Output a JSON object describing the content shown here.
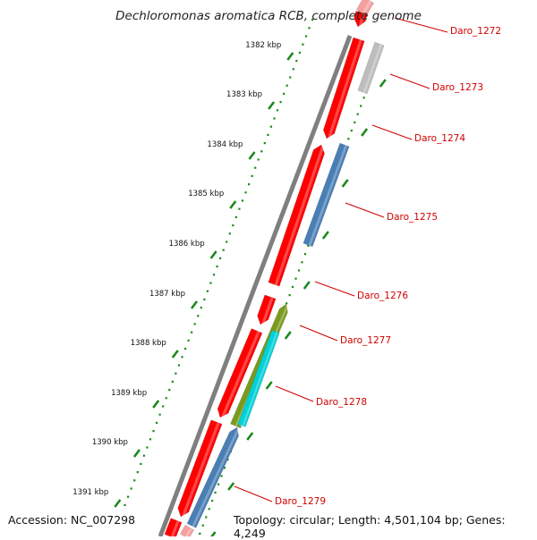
{
  "title": "Dechloromonas aromatica RCB, complete genome",
  "footer": {
    "accession": "Accession: NC_007298",
    "topology": "Topology: circular; Length: 4,501,104 bp; Genes: 4,249"
  },
  "colors": {
    "forward_gene": "#ff0000",
    "reverse_blue": "#4a7fb5",
    "reverse_gray": "#bdbdbd",
    "olive": "#7a9a1e",
    "cyan": "#00d0d8",
    "pink": "#f4a0a0",
    "backbone": "#808080",
    "tick": "#1a8a1a",
    "label": "#d00000"
  },
  "ruler_ticks": [
    "1382 kbp",
    "1383 kbp",
    "1384 kbp",
    "1385 kbp",
    "1386 kbp",
    "1387 kbp",
    "1388 kbp",
    "1389 kbp",
    "1390 kbp",
    "1391 kbp"
  ],
  "genes": [
    {
      "label": "Daro_1272"
    },
    {
      "label": "Daro_1273"
    },
    {
      "label": "Daro_1274"
    },
    {
      "label": "Daro_1275"
    },
    {
      "label": "Daro_1276"
    },
    {
      "label": "Daro_1277"
    },
    {
      "label": "Daro_1278"
    },
    {
      "label": "Daro_1279"
    }
  ]
}
